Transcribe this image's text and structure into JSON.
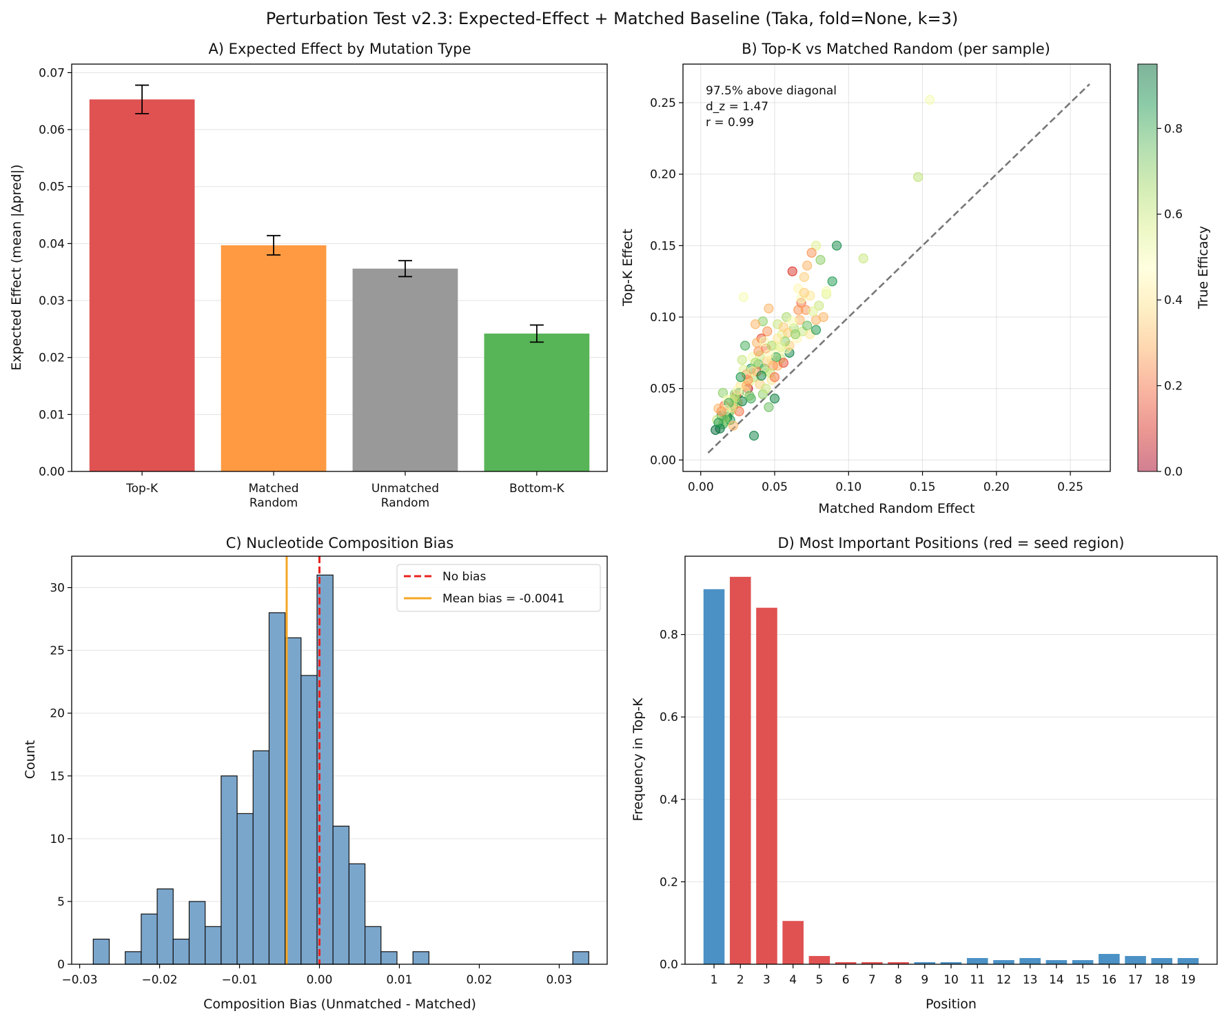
{
  "figure_title": "Perturbation Test v2.3: Expected-Effect + Matched Baseline (Taka, fold=None, k=3)",
  "colors": {
    "red": "#e05252",
    "orange": "#ff9a42",
    "gray": "#999999",
    "green": "#57b457",
    "blue": "#4b91c5",
    "hist": "#7ba6cc",
    "no_bias_line": "#e8231f",
    "mean_line": "#f5a623",
    "diag_line": "#777777"
  },
  "chart_data": [
    {
      "id": "A",
      "type": "bar",
      "title": "A) Expected Effect by Mutation Type",
      "xlabel": "",
      "ylabel": "Expected Effect (mean |Δpred|)",
      "ylim": [
        0,
        0.0715
      ],
      "yticks": [
        0.0,
        0.01,
        0.02,
        0.03,
        0.04,
        0.05,
        0.06,
        0.07
      ],
      "ytick_labels": [
        "0.00",
        "0.01",
        "0.02",
        "0.03",
        "0.04",
        "0.05",
        "0.06",
        "0.07"
      ],
      "categories": [
        [
          "Top-K"
        ],
        [
          "Matched",
          "Random"
        ],
        [
          "Unmatched",
          "Random"
        ],
        [
          "Bottom-K"
        ]
      ],
      "values": [
        0.0653,
        0.0397,
        0.0356,
        0.0242
      ],
      "errors": [
        0.0025,
        0.0017,
        0.0014,
        0.0015
      ],
      "bar_colors": [
        "#e05252",
        "#ff9a42",
        "#999999",
        "#57b457"
      ],
      "grid": "y"
    },
    {
      "id": "B",
      "type": "scatter",
      "title": "B) Top-K vs Matched Random (per sample)",
      "xlabel": "Matched Random Effect",
      "ylabel": "Top-K Effect",
      "xlim": [
        -0.012,
        0.277
      ],
      "ylim": [
        -0.008,
        0.277
      ],
      "xticks": [
        0.0,
        0.05,
        0.1,
        0.15,
        0.2,
        0.25
      ],
      "xtick_labels": [
        "0.00",
        "0.05",
        "0.10",
        "0.15",
        "0.20",
        "0.25"
      ],
      "yticks": [
        0.0,
        0.05,
        0.1,
        0.15,
        0.2,
        0.25
      ],
      "ytick_labels": [
        "0.00",
        "0.05",
        "0.10",
        "0.15",
        "0.20",
        "0.25"
      ],
      "diagonal": [
        0.005,
        0.263
      ],
      "annotation": [
        "97.5% above diagonal",
        "d_z = 1.47",
        "r = 0.99"
      ],
      "colorbar_label": "True Efficacy",
      "colorbar_range": [
        0,
        0.95
      ],
      "colorbar_ticks": [
        0.0,
        0.2,
        0.4,
        0.6,
        0.8
      ],
      "colorbar_tick_labels": [
        "0.0",
        "0.2",
        "0.4",
        "0.6",
        "0.8"
      ],
      "points": [
        [
          0.155,
          0.252,
          0.5
        ],
        [
          0.147,
          0.198,
          0.62
        ],
        [
          0.11,
          0.141,
          0.6
        ],
        [
          0.092,
          0.15,
          0.88
        ],
        [
          0.089,
          0.125,
          0.85
        ],
        [
          0.085,
          0.116,
          0.55
        ],
        [
          0.081,
          0.14,
          0.7
        ],
        [
          0.078,
          0.15,
          0.55
        ],
        [
          0.075,
          0.145,
          0.25
        ],
        [
          0.072,
          0.136,
          0.3
        ],
        [
          0.07,
          0.128,
          0.35
        ],
        [
          0.062,
          0.132,
          0.1
        ],
        [
          0.066,
          0.12,
          0.45
        ],
        [
          0.068,
          0.11,
          0.2
        ],
        [
          0.071,
          0.105,
          0.25
        ],
        [
          0.074,
          0.115,
          0.4
        ],
        [
          0.078,
          0.098,
          0.3
        ],
        [
          0.08,
          0.108,
          0.6
        ],
        [
          0.083,
          0.1,
          0.3
        ],
        [
          0.085,
          0.118,
          0.5
        ],
        [
          0.06,
          0.075,
          0.9
        ],
        [
          0.058,
          0.1,
          0.65
        ],
        [
          0.055,
          0.088,
          0.55
        ],
        [
          0.052,
          0.095,
          0.6
        ],
        [
          0.05,
          0.08,
          0.45
        ],
        [
          0.048,
          0.07,
          0.4
        ],
        [
          0.046,
          0.106,
          0.3
        ],
        [
          0.045,
          0.09,
          0.25
        ],
        [
          0.044,
          0.078,
          0.2
        ],
        [
          0.043,
          0.064,
          0.85
        ],
        [
          0.042,
          0.097,
          0.7
        ],
        [
          0.041,
          0.085,
          0.15
        ],
        [
          0.04,
          0.073,
          0.6
        ],
        [
          0.039,
          0.067,
          0.75
        ],
        [
          0.038,
          0.082,
          0.3
        ],
        [
          0.037,
          0.095,
          0.3
        ],
        [
          0.036,
          0.058,
          0.65
        ],
        [
          0.035,
          0.072,
          0.5
        ],
        [
          0.034,
          0.064,
          0.85
        ],
        [
          0.033,
          0.055,
          0.55
        ],
        [
          0.032,
          0.05,
          0.05
        ],
        [
          0.031,
          0.06,
          0.2
        ],
        [
          0.03,
          0.08,
          0.8
        ],
        [
          0.029,
          0.114,
          0.5
        ],
        [
          0.028,
          0.07,
          0.6
        ],
        [
          0.027,
          0.052,
          0.4
        ],
        [
          0.026,
          0.047,
          0.9
        ],
        [
          0.025,
          0.04,
          0.3
        ],
        [
          0.024,
          0.045,
          0.2
        ],
        [
          0.023,
          0.046,
          0.7
        ],
        [
          0.022,
          0.038,
          0.85
        ],
        [
          0.021,
          0.035,
          0.6
        ],
        [
          0.02,
          0.042,
          0.4
        ],
        [
          0.019,
          0.033,
          0.75
        ],
        [
          0.018,
          0.03,
          0.95
        ],
        [
          0.017,
          0.027,
          0.65
        ],
        [
          0.016,
          0.038,
          0.2
        ],
        [
          0.015,
          0.025,
          0.8
        ],
        [
          0.014,
          0.031,
          0.9
        ],
        [
          0.013,
          0.022,
          0.92
        ],
        [
          0.012,
          0.036,
          0.3
        ],
        [
          0.011,
          0.028,
          0.6
        ],
        [
          0.01,
          0.021,
          0.95
        ],
        [
          0.015,
          0.047,
          0.7
        ],
        [
          0.018,
          0.042,
          0.5
        ],
        [
          0.02,
          0.028,
          0.85
        ],
        [
          0.022,
          0.024,
          0.3
        ],
        [
          0.024,
          0.04,
          0.6
        ],
        [
          0.026,
          0.034,
          0.2
        ],
        [
          0.028,
          0.041,
          0.9
        ],
        [
          0.03,
          0.048,
          0.45
        ],
        [
          0.032,
          0.056,
          0.25
        ],
        [
          0.034,
          0.043,
          0.8
        ],
        [
          0.036,
          0.017,
          0.9
        ],
        [
          0.038,
          0.062,
          0.2
        ],
        [
          0.04,
          0.053,
          0.35
        ],
        [
          0.042,
          0.046,
          0.7
        ],
        [
          0.044,
          0.062,
          0.55
        ],
        [
          0.046,
          0.037,
          0.75
        ],
        [
          0.048,
          0.056,
          0.4
        ],
        [
          0.05,
          0.043,
          0.9
        ],
        [
          0.052,
          0.066,
          0.3
        ],
        [
          0.054,
          0.071,
          0.6
        ],
        [
          0.056,
          0.068,
          0.15
        ],
        [
          0.058,
          0.078,
          0.5
        ],
        [
          0.06,
          0.08,
          0.35
        ],
        [
          0.063,
          0.092,
          0.65
        ],
        [
          0.065,
          0.085,
          0.45
        ],
        [
          0.067,
          0.098,
          0.3
        ],
        [
          0.069,
          0.09,
          0.6
        ],
        [
          0.072,
          0.094,
          0.75
        ],
        [
          0.074,
          0.088,
          0.4
        ],
        [
          0.076,
          0.104,
          0.55
        ],
        [
          0.078,
          0.091,
          0.85
        ],
        [
          0.066,
          0.105,
          0.25
        ],
        [
          0.062,
          0.097,
          0.5
        ],
        [
          0.059,
          0.089,
          0.35
        ],
        [
          0.057,
          0.083,
          0.7
        ],
        [
          0.053,
          0.076,
          0.45
        ],
        [
          0.051,
          0.072,
          0.8
        ],
        [
          0.049,
          0.066,
          0.25
        ],
        [
          0.047,
          0.061,
          0.6
        ],
        [
          0.045,
          0.069,
          0.35
        ],
        [
          0.043,
          0.083,
          0.5
        ],
        [
          0.041,
          0.059,
          0.9
        ],
        [
          0.039,
          0.076,
          0.25
        ],
        [
          0.037,
          0.068,
          0.65
        ],
        [
          0.035,
          0.062,
          0.4
        ],
        [
          0.033,
          0.045,
          0.75
        ],
        [
          0.031,
          0.052,
          0.3
        ],
        [
          0.029,
          0.063,
          0.55
        ],
        [
          0.027,
          0.058,
          0.85
        ],
        [
          0.025,
          0.049,
          0.45
        ],
        [
          0.023,
          0.043,
          0.65
        ],
        [
          0.021,
          0.037,
          0.35
        ],
        [
          0.019,
          0.04,
          0.8
        ],
        [
          0.017,
          0.035,
          0.5
        ],
        [
          0.016,
          0.029,
          0.7
        ],
        [
          0.014,
          0.034,
          0.25
        ],
        [
          0.012,
          0.026,
          0.85
        ],
        [
          0.044,
          0.05,
          0.6
        ],
        [
          0.046,
          0.074,
          0.45
        ],
        [
          0.048,
          0.08,
          0.65
        ],
        [
          0.05,
          0.058,
          0.2
        ],
        [
          0.052,
          0.085,
          0.4
        ],
        [
          0.054,
          0.079,
          0.55
        ],
        [
          0.056,
          0.093,
          0.35
        ],
        [
          0.064,
          0.088,
          0.7
        ],
        [
          0.068,
          0.113,
          0.5
        ],
        [
          0.07,
          0.117,
          0.35
        ]
      ]
    },
    {
      "id": "C",
      "type": "histogram",
      "title": "C) Nucleotide Composition Bias",
      "xlabel": "Composition Bias (Unmatched - Matched)",
      "ylabel": "Count",
      "xlim": [
        -0.031,
        0.036
      ],
      "ylim": [
        0,
        32.5
      ],
      "xticks": [
        -0.03,
        -0.02,
        -0.01,
        0.0,
        0.01,
        0.02,
        0.03
      ],
      "xtick_labels": [
        "−0.03",
        "−0.02",
        "−0.01",
        "0.00",
        "0.01",
        "0.02",
        "0.03"
      ],
      "yticks": [
        0,
        5,
        10,
        15,
        20,
        25,
        30
      ],
      "ytick_labels": [
        "0",
        "5",
        "10",
        "15",
        "20",
        "25",
        "30"
      ],
      "bin_start": -0.0283,
      "bin_width": 0.002,
      "counts": [
        2,
        0,
        1,
        4,
        6,
        2,
        5,
        3,
        15,
        12,
        17,
        28,
        26,
        23,
        31,
        11,
        8,
        3,
        1,
        0,
        1,
        0,
        0,
        0,
        0,
        0,
        0,
        0,
        0,
        0,
        1
      ],
      "vlines": [
        {
          "x": 0.0,
          "style": "dashed",
          "label": "No bias"
        },
        {
          "x": -0.0041,
          "style": "solid",
          "label": "Mean bias = -0.0041"
        }
      ],
      "legend_position": "top-right",
      "grid": "y"
    },
    {
      "id": "D",
      "type": "bar",
      "title": "D) Most Important Positions (red = seed region)",
      "xlabel": "Position",
      "ylabel": "Frequency in Top-K",
      "ylim": [
        0,
        0.99
      ],
      "yticks": [
        0.0,
        0.2,
        0.4,
        0.6,
        0.8
      ],
      "ytick_labels": [
        "0.0",
        "0.2",
        "0.4",
        "0.6",
        "0.8"
      ],
      "categories": [
        "1",
        "2",
        "3",
        "4",
        "5",
        "6",
        "7",
        "8",
        "9",
        "10",
        "11",
        "12",
        "13",
        "14",
        "15",
        "16",
        "17",
        "18",
        "19"
      ],
      "values": [
        0.91,
        0.94,
        0.865,
        0.105,
        0.02,
        0.005,
        0.005,
        0.005,
        0.005,
        0.005,
        0.015,
        0.01,
        0.015,
        0.01,
        0.01,
        0.025,
        0.02,
        0.015,
        0.015
      ],
      "seed_region": [
        false,
        true,
        true,
        true,
        true,
        true,
        true,
        true,
        false,
        false,
        false,
        false,
        false,
        false,
        false,
        false,
        false,
        false,
        false
      ],
      "grid": "y"
    }
  ]
}
